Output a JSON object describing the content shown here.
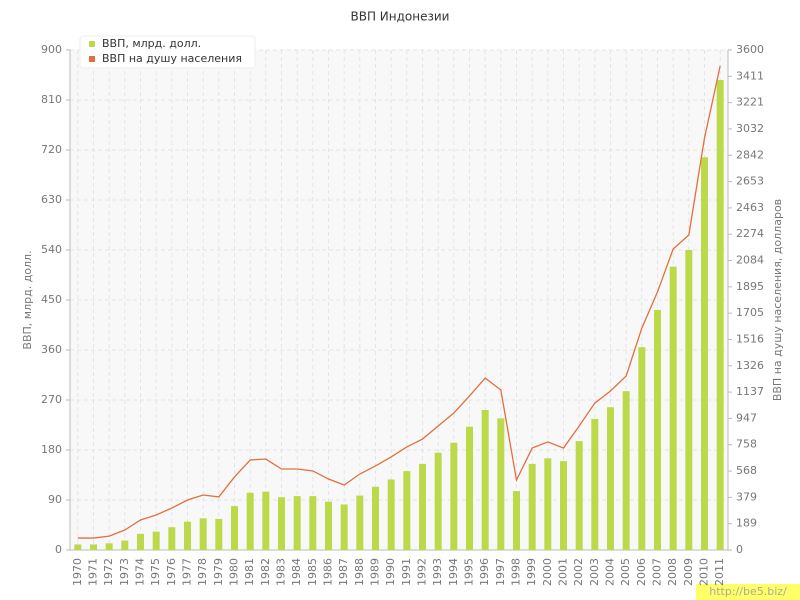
{
  "chart_data": {
    "type": "bar_line",
    "title": "ВВП Индонезии",
    "y_label": "ВВП, млрд. долл.",
    "y2_label": "ВВП на душу населения, долларов",
    "watermark": "http://be5.biz/",
    "categories": [
      "1970",
      "1971",
      "1972",
      "1973",
      "1974",
      "1975",
      "1976",
      "1977",
      "1978",
      "1979",
      "1980",
      "1981",
      "1982",
      "1983",
      "1984",
      "1985",
      "1986",
      "1987",
      "1988",
      "1989",
      "1990",
      "1991",
      "1992",
      "1993",
      "1994",
      "1995",
      "1996",
      "1997",
      "1998",
      "1999",
      "2000",
      "2001",
      "2002",
      "2003",
      "2004",
      "2005",
      "2006",
      "2007",
      "2008",
      "2009",
      "2010",
      "2011"
    ],
    "series": [
      {
        "name": "ВВП, млрд. долл.",
        "color": "#bcd94a",
        "kind": "bar",
        "axis": "y",
        "values": [
          10,
          10,
          12,
          17,
          29,
          33,
          41,
          51,
          57,
          56,
          79,
          103,
          105,
          95,
          97,
          97,
          87,
          82,
          98,
          114,
          127,
          142,
          155,
          175,
          193,
          222,
          252,
          237,
          106,
          155,
          165,
          160,
          196,
          236,
          257,
          286,
          365,
          432,
          510,
          540,
          707,
          846
        ]
      },
      {
        "name": "ВВП на душу населения",
        "color": "#e07040",
        "kind": "line",
        "axis": "y2",
        "values": [
          86,
          86,
          100,
          144,
          216,
          252,
          302,
          360,
          396,
          382,
          526,
          648,
          655,
          583,
          583,
          569,
          511,
          468,
          547,
          605,
          670,
          742,
          799,
          893,
          986,
          1109,
          1238,
          1152,
          504,
          734,
          778,
          734,
          893,
          1058,
          1145,
          1253,
          1598,
          1858,
          2167,
          2268,
          2966,
          3485
        ]
      }
    ],
    "ylim": [
      0,
      900
    ],
    "yticks": [
      0,
      90,
      180,
      270,
      360,
      450,
      540,
      630,
      720,
      810,
      900
    ],
    "y2lim": [
      0,
      3600
    ],
    "y2ticks": [
      0,
      {
        "value": 189.47,
        "label": "189"
      },
      {
        "value": 378.95,
        "label": "379"
      },
      {
        "value": 568.42,
        "label": "568"
      },
      {
        "value": 757.89,
        "label": "758"
      },
      {
        "value": 947.37,
        "label": "947"
      },
      {
        "value": 1136.84,
        "label": "1137"
      },
      {
        "value": 1326.32,
        "label": "1326"
      },
      {
        "value": 1515.79,
        "label": "1516"
      },
      {
        "value": 1705.26,
        "label": "1705"
      },
      {
        "value": 1894.74,
        "label": "1895"
      },
      {
        "value": 2084.21,
        "label": "2084"
      },
      {
        "value": 2273.68,
        "label": "2274"
      },
      {
        "value": 2463.16,
        "label": "2463"
      },
      {
        "value": 2652.63,
        "label": "2653"
      },
      {
        "value": 2842.11,
        "label": "2842"
      },
      {
        "value": 3031.58,
        "label": "3032"
      },
      {
        "value": 3221.05,
        "label": "3221"
      },
      {
        "value": 3410.53,
        "label": "3411"
      },
      3600
    ],
    "grid": true,
    "legend": "top-left"
  }
}
